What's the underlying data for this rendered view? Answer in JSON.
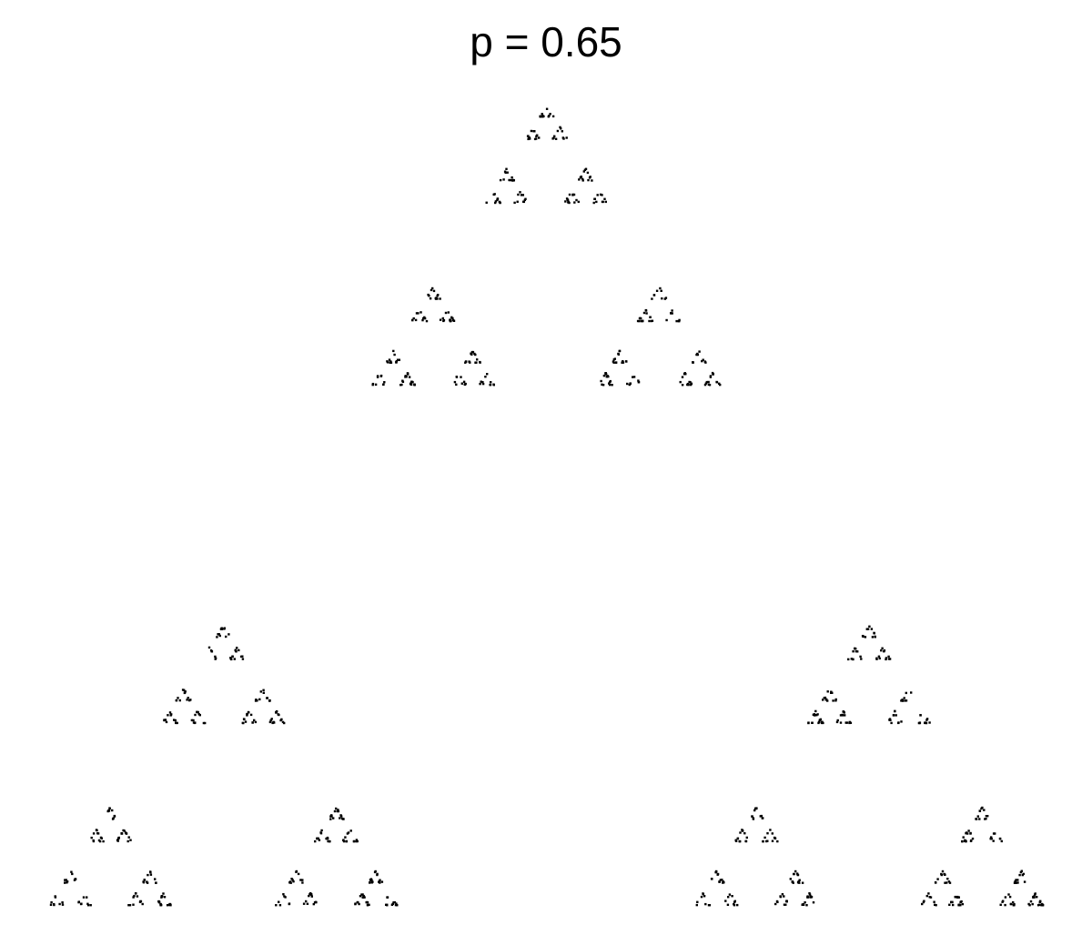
{
  "chart_data": {
    "type": "scatter",
    "title": "p = 0.65",
    "xlabel": "",
    "ylabel": "",
    "xlim": [
      0,
      1
    ],
    "ylim": [
      0,
      0.866
    ],
    "axes_visible": false,
    "grid": false,
    "legend": "none",
    "point_color": "#000000",
    "generation": {
      "shape": "equilateral-triangle",
      "vertices": [
        [
          0,
          0
        ],
        [
          1,
          0
        ],
        [
          0.5,
          0.866
        ]
      ],
      "p": 0.65,
      "n_points": 1100,
      "seed": 65
    }
  }
}
